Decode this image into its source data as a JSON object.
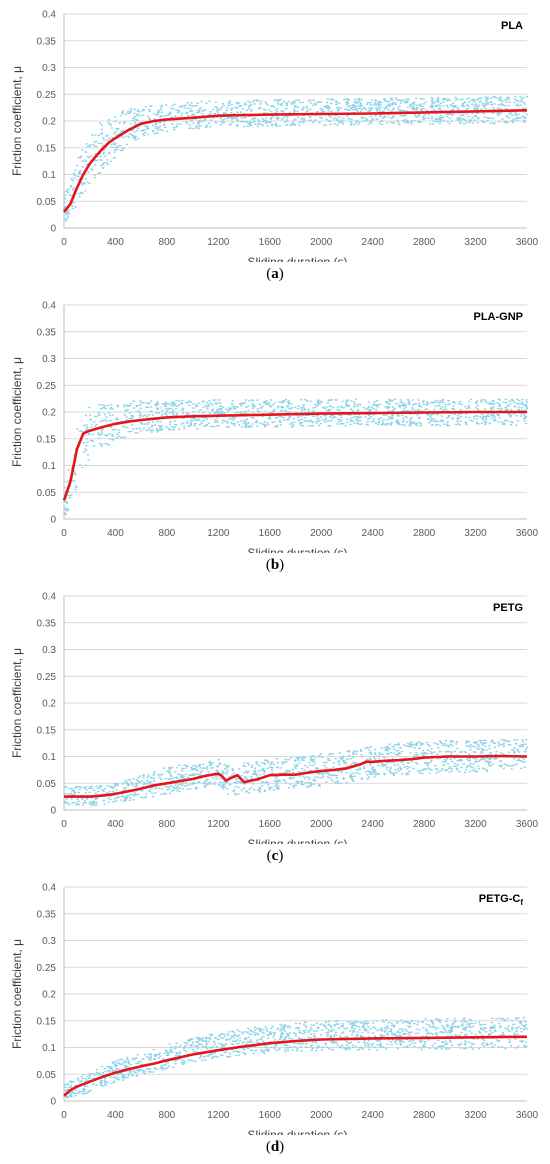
{
  "colors": {
    "scatter": "#8dd3e8",
    "mean": "#e8141c",
    "grid": "#d9d9d9",
    "axis": "#bfbfbf"
  },
  "chart_data": [
    {
      "id": "a",
      "type": "scatter",
      "title": "PLA",
      "title_subscript": "",
      "caption": "a",
      "xlabel": "Sliding duration (s)",
      "ylabel": "Friction coefficient, μ",
      "xlim": [
        0,
        3600
      ],
      "ylim": [
        0,
        0.4
      ],
      "xticks": [
        0,
        400,
        800,
        1200,
        1600,
        2000,
        2400,
        2800,
        3200,
        3600
      ],
      "yticks": [
        0,
        0.05,
        0.1,
        0.15,
        0.2,
        0.25,
        0.3,
        0.35,
        0.4
      ],
      "ytick_labels": [
        "0",
        "0.05",
        "0.1",
        "0.15",
        "0.2",
        "0.25",
        "0.3",
        "0.35",
        "0.4"
      ],
      "series": [
        {
          "kind": "band",
          "x": [
            0,
            50,
            100,
            150,
            200,
            300,
            400,
            500,
            600,
            800,
            1000,
            1200,
            1600,
            2000,
            2400,
            2800,
            3200,
            3600
          ],
          "upper": [
            0.06,
            0.09,
            0.13,
            0.16,
            0.18,
            0.2,
            0.215,
            0.225,
            0.228,
            0.232,
            0.236,
            0.238,
            0.24,
            0.242,
            0.243,
            0.244,
            0.245,
            0.246
          ],
          "lower": [
            0.01,
            0.02,
            0.04,
            0.06,
            0.08,
            0.11,
            0.13,
            0.15,
            0.17,
            0.18,
            0.185,
            0.188,
            0.19,
            0.192,
            0.193,
            0.194,
            0.195,
            0.196
          ]
        },
        {
          "kind": "line",
          "x": [
            0,
            50,
            100,
            150,
            200,
            250,
            300,
            350,
            400,
            500,
            600,
            700,
            800,
            1000,
            1200,
            1400,
            1600,
            2000,
            2400,
            2800,
            3200,
            3600
          ],
          "y": [
            0.03,
            0.045,
            0.075,
            0.1,
            0.12,
            0.135,
            0.148,
            0.16,
            0.168,
            0.183,
            0.195,
            0.2,
            0.203,
            0.206,
            0.21,
            0.211,
            0.212,
            0.213,
            0.214,
            0.216,
            0.218,
            0.22
          ]
        }
      ]
    },
    {
      "id": "b",
      "type": "scatter",
      "title": "PLA-GNP",
      "title_subscript": "",
      "caption": "b",
      "xlabel": "Sliding duration (s)",
      "ylabel": "Friction coefficient, μ",
      "xlim": [
        0,
        3600
      ],
      "ylim": [
        0,
        0.4
      ],
      "xticks": [
        0,
        400,
        800,
        1200,
        1600,
        2000,
        2400,
        2800,
        3200,
        3600
      ],
      "yticks": [
        0,
        0.05,
        0.1,
        0.15,
        0.2,
        0.25,
        0.3,
        0.35,
        0.4
      ],
      "ytick_labels": [
        "0",
        "0.05",
        "0.1",
        "0.15",
        "0.2",
        "0.25",
        "0.3",
        "0.35",
        "0.4"
      ],
      "series": [
        {
          "kind": "band",
          "x": [
            0,
            50,
            100,
            150,
            200,
            300,
            400,
            500,
            600,
            800,
            1000,
            1200,
            1600,
            2000,
            2400,
            2800,
            3200,
            3600
          ],
          "upper": [
            0.06,
            0.12,
            0.17,
            0.2,
            0.21,
            0.215,
            0.217,
            0.22,
            0.221,
            0.222,
            0.223,
            0.223,
            0.224,
            0.224,
            0.224,
            0.224,
            0.224,
            0.224
          ],
          "lower": [
            0.0,
            0.02,
            0.06,
            0.09,
            0.11,
            0.13,
            0.145,
            0.155,
            0.16,
            0.165,
            0.168,
            0.17,
            0.172,
            0.173,
            0.174,
            0.174,
            0.175,
            0.175
          ]
        },
        {
          "kind": "line",
          "x": [
            0,
            50,
            100,
            150,
            200,
            300,
            400,
            500,
            600,
            800,
            1000,
            1200,
            1600,
            2000,
            2400,
            2800,
            3200,
            3600
          ],
          "y": [
            0.035,
            0.07,
            0.13,
            0.16,
            0.165,
            0.172,
            0.178,
            0.182,
            0.185,
            0.19,
            0.192,
            0.193,
            0.195,
            0.197,
            0.198,
            0.199,
            0.2,
            0.2
          ]
        }
      ]
    },
    {
      "id": "c",
      "type": "scatter",
      "title": "PETG",
      "title_subscript": "",
      "caption": "c",
      "xlabel": "Sliding duration (s)",
      "ylabel": "Friction coefficient, μ",
      "xlim": [
        0,
        3600
      ],
      "ylim": [
        0,
        0.4
      ],
      "xticks": [
        0,
        400,
        800,
        1200,
        1600,
        2000,
        2400,
        2800,
        3200,
        3600
      ],
      "yticks": [
        0,
        0.05,
        0.1,
        0.15,
        0.2,
        0.25,
        0.3,
        0.35,
        0.4
      ],
      "ytick_labels": [
        "0",
        "0.05",
        "0.1",
        "0.15",
        "0.2",
        "0.25",
        "0.3",
        "0.35",
        "0.4"
      ],
      "series": [
        {
          "kind": "band",
          "x": [
            0,
            200,
            400,
            600,
            800,
            1000,
            1200,
            1250,
            1300,
            1400,
            1600,
            1800,
            2000,
            2200,
            2400,
            2600,
            2800,
            3000,
            3200,
            3400,
            3600
          ],
          "upper": [
            0.045,
            0.045,
            0.05,
            0.065,
            0.08,
            0.088,
            0.095,
            0.085,
            0.08,
            0.088,
            0.095,
            0.1,
            0.105,
            0.11,
            0.12,
            0.125,
            0.128,
            0.13,
            0.13,
            0.132,
            0.132
          ],
          "lower": [
            0.01,
            0.008,
            0.012,
            0.02,
            0.03,
            0.038,
            0.045,
            0.03,
            0.025,
            0.03,
            0.035,
            0.04,
            0.045,
            0.05,
            0.06,
            0.065,
            0.068,
            0.07,
            0.07,
            0.072,
            0.072
          ]
        },
        {
          "kind": "line",
          "x": [
            0,
            100,
            200,
            300,
            400,
            500,
            600,
            700,
            800,
            900,
            1000,
            1100,
            1200,
            1230,
            1260,
            1300,
            1350,
            1400,
            1450,
            1500,
            1600,
            1700,
            1800,
            1900,
            2000,
            2100,
            2200,
            2300,
            2350,
            2400,
            2500,
            2600,
            2700,
            2800,
            2900,
            3000,
            3200,
            3400,
            3600
          ],
          "y": [
            0.025,
            0.025,
            0.025,
            0.027,
            0.03,
            0.035,
            0.04,
            0.046,
            0.05,
            0.054,
            0.058,
            0.064,
            0.068,
            0.063,
            0.055,
            0.06,
            0.065,
            0.052,
            0.055,
            0.057,
            0.065,
            0.066,
            0.066,
            0.07,
            0.073,
            0.075,
            0.078,
            0.085,
            0.09,
            0.09,
            0.092,
            0.093,
            0.095,
            0.098,
            0.099,
            0.1,
            0.1,
            0.101,
            0.1
          ]
        }
      ]
    },
    {
      "id": "d",
      "type": "scatter",
      "title": "PETG-C",
      "title_subscript": "f",
      "caption": "d",
      "xlabel": "Sliding duration (s)",
      "ylabel": "Friction coefficient, μ",
      "xlim": [
        0,
        3600
      ],
      "ylim": [
        0,
        0.4
      ],
      "xticks": [
        0,
        400,
        800,
        1200,
        1600,
        2000,
        2400,
        2800,
        3200,
        3600
      ],
      "yticks": [
        0,
        0.05,
        0.1,
        0.15,
        0.2,
        0.25,
        0.3,
        0.35,
        0.4
      ],
      "ytick_labels": [
        "0",
        "0.05",
        "0.1",
        "0.15",
        "0.2",
        "0.25",
        "0.3",
        "0.35",
        "0.4"
      ],
      "series": [
        {
          "kind": "band",
          "x": [
            0,
            100,
            200,
            400,
            600,
            800,
            1000,
            1200,
            1600,
            2000,
            2400,
            2800,
            3200,
            3600
          ],
          "upper": [
            0.03,
            0.045,
            0.055,
            0.075,
            0.09,
            0.105,
            0.118,
            0.128,
            0.142,
            0.15,
            0.152,
            0.154,
            0.155,
            0.156
          ],
          "lower": [
            0.0,
            0.008,
            0.015,
            0.035,
            0.048,
            0.06,
            0.072,
            0.08,
            0.09,
            0.094,
            0.095,
            0.096,
            0.097,
            0.097
          ]
        },
        {
          "kind": "line",
          "x": [
            0,
            50,
            100,
            200,
            300,
            400,
            500,
            600,
            700,
            800,
            1000,
            1200,
            1400,
            1600,
            1800,
            2000,
            2400,
            2800,
            3200,
            3600
          ],
          "y": [
            0.01,
            0.02,
            0.027,
            0.036,
            0.045,
            0.053,
            0.059,
            0.065,
            0.07,
            0.076,
            0.087,
            0.095,
            0.102,
            0.108,
            0.112,
            0.115,
            0.117,
            0.118,
            0.119,
            0.12
          ]
        }
      ]
    }
  ]
}
